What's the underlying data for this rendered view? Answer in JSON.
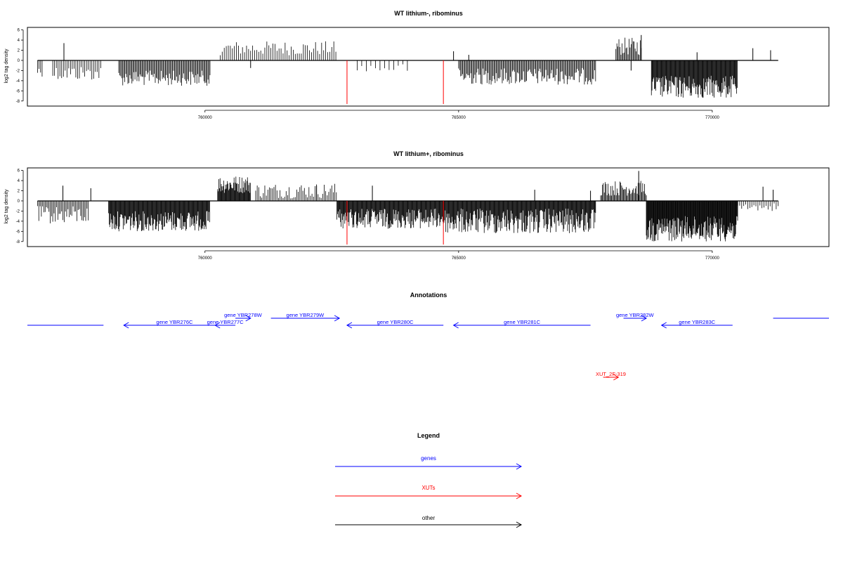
{
  "chart_data": [
    {
      "type": "bar",
      "title": "WT lithium-, ribominus",
      "ylabel": "log2 tag density",
      "xlim": [
        756500,
        772300
      ],
      "ylim": [
        -9,
        6.5
      ],
      "x_ticks": [
        760000,
        765000,
        770000
      ],
      "x_tick_labels": [
        "760000",
        "765000",
        "770000"
      ],
      "y_ticks": [
        6,
        4,
        2,
        0,
        -2,
        -4,
        -6,
        -8
      ],
      "y_tick_labels": [
        "6",
        "4",
        "2",
        "0",
        "-2",
        "-4",
        "-6",
        "-8"
      ],
      "baseline": {
        "x_start": 756700,
        "x_end": 771300,
        "y": 0
      },
      "series": [
        {
          "color": "#000000",
          "segments": [
            {
              "x0": 756700,
              "x1": 756800,
              "step": 30,
              "sign": -1,
              "min": 1.0,
              "max": 3.2
            },
            {
              "x0": 757000,
              "x1": 757950,
              "step": 35,
              "sign": -1,
              "min": 1.0,
              "max": 4.0
            },
            {
              "x0": 758300,
              "x1": 760100,
              "step": 20,
              "sign": -1,
              "min": 2.0,
              "max": 5.0
            },
            {
              "x0": 760300,
              "x1": 762600,
              "step": 40,
              "sign": 1,
              "min": 1.0,
              "max": 3.8
            },
            {
              "x0": 763000,
              "x1": 764000,
              "step": 90,
              "sign": -1,
              "min": 0.5,
              "max": 2.5
            },
            {
              "x0": 765000,
              "x1": 767700,
              "step": 20,
              "sign": -1,
              "min": 1.5,
              "max": 4.8
            },
            {
              "x0": 768100,
              "x1": 768600,
              "step": 20,
              "sign": 1,
              "min": 1.0,
              "max": 4.5
            },
            {
              "x0": 768800,
              "x1": 770500,
              "step": 12,
              "sign": -1,
              "min": 3.0,
              "max": 7.5
            }
          ]
        },
        {
          "color": "#000000",
          "spikes": [
            {
              "x": 757220,
              "y": 3.4
            },
            {
              "x": 760900,
              "y": -1.5
            },
            {
              "x": 765200,
              "y": 1.1
            },
            {
              "x": 764900,
              "y": 1.8
            },
            {
              "x": 768600,
              "y": 5.0
            },
            {
              "x": 769700,
              "y": 1.6
            },
            {
              "x": 770800,
              "y": 2.4
            },
            {
              "x": 771150,
              "y": 2.0
            },
            {
              "x": 768400,
              "y": -2.0
            }
          ]
        },
        {
          "color": "#ff0000",
          "spikes": [
            {
              "x": 762800,
              "y": -8.6
            },
            {
              "x": 764700,
              "y": -8.6
            }
          ]
        }
      ]
    },
    {
      "type": "bar",
      "title": "WT lithium+, ribominus",
      "ylabel": "log2 tag density",
      "xlim": [
        756500,
        772300
      ],
      "ylim": [
        -9,
        6.5
      ],
      "x_ticks": [
        760000,
        765000,
        770000
      ],
      "x_tick_labels": [
        "760000",
        "765000",
        "770000"
      ],
      "y_ticks": [
        6,
        4,
        2,
        0,
        -2,
        -4,
        -6,
        -8
      ],
      "y_tick_labels": [
        "6",
        "4",
        "2",
        "0",
        "-2",
        "-4",
        "-6",
        "-8"
      ],
      "baseline": {
        "x_start": 756700,
        "x_end": 771300,
        "y": 0
      },
      "series": [
        {
          "color": "#000000",
          "segments": [
            {
              "x0": 756700,
              "x1": 757700,
              "step": 25,
              "sign": -1,
              "min": 1.0,
              "max": 4.5
            },
            {
              "x0": 758100,
              "x1": 760100,
              "step": 12,
              "sign": -1,
              "min": 2.0,
              "max": 6.0
            },
            {
              "x0": 760250,
              "x1": 760900,
              "step": 12,
              "sign": 1,
              "min": 1.5,
              "max": 5.0
            },
            {
              "x0": 761000,
              "x1": 762600,
              "step": 30,
              "sign": 1,
              "min": 0.5,
              "max": 3.5
            },
            {
              "x0": 762600,
              "x1": 764700,
              "step": 12,
              "sign": -1,
              "min": 1.5,
              "max": 5.5
            },
            {
              "x0": 764700,
              "x1": 767700,
              "step": 12,
              "sign": -1,
              "min": 1.5,
              "max": 6.5
            },
            {
              "x0": 767800,
              "x1": 768700,
              "step": 18,
              "sign": 1,
              "min": 1.0,
              "max": 4.0
            },
            {
              "x0": 768700,
              "x1": 770500,
              "step": 10,
              "sign": -1,
              "min": 3.0,
              "max": 8.0
            },
            {
              "x0": 770500,
              "x1": 771300,
              "step": 40,
              "sign": -1,
              "min": 0.5,
              "max": 2.0
            }
          ]
        },
        {
          "color": "#000000",
          "spikes": [
            {
              "x": 757200,
              "y": 3.0
            },
            {
              "x": 757750,
              "y": 2.5
            },
            {
              "x": 762200,
              "y": 3.0
            },
            {
              "x": 763300,
              "y": 3.0
            },
            {
              "x": 768550,
              "y": 5.9
            },
            {
              "x": 771000,
              "y": 2.8
            },
            {
              "x": 771200,
              "y": 2.2
            },
            {
              "x": 767600,
              "y": 2.0
            },
            {
              "x": 766500,
              "y": 2.2
            }
          ]
        },
        {
          "color": "#ff0000",
          "spikes": [
            {
              "x": 762800,
              "y": -8.6
            },
            {
              "x": 764700,
              "y": -8.6
            }
          ]
        }
      ]
    }
  ],
  "annotations": {
    "title": "Annotations",
    "genes": [
      {
        "label": "",
        "x0": 756500,
        "x1": 758000,
        "strand": "-",
        "row": 1,
        "color": "#0000ff",
        "head": false
      },
      {
        "label": "gene YBR276C",
        "x0": 758400,
        "x1": 760400,
        "strand": "-",
        "row": 1,
        "color": "#0000ff",
        "head": true
      },
      {
        "label": "gene YBR277C",
        "x0": 760200,
        "x1": 760600,
        "strand": "-",
        "row": 1,
        "color": "#0000ff",
        "head": true
      },
      {
        "label": "gene YBR278W",
        "x0": 760600,
        "x1": 760900,
        "strand": "+",
        "row": 0,
        "color": "#0000ff",
        "head": true
      },
      {
        "label": "gene YBR279W",
        "x0": 761300,
        "x1": 762650,
        "strand": "+",
        "row": 0,
        "color": "#0000ff",
        "head": true
      },
      {
        "label": "gene YBR280C",
        "x0": 762800,
        "x1": 764700,
        "strand": "-",
        "row": 1,
        "color": "#0000ff",
        "head": true
      },
      {
        "label": "gene YBR281C",
        "x0": 764900,
        "x1": 767600,
        "strand": "-",
        "row": 1,
        "color": "#0000ff",
        "head": true
      },
      {
        "label": "gene YBR282W",
        "x0": 768250,
        "x1": 768700,
        "strand": "+",
        "row": 0,
        "color": "#0000ff",
        "head": true
      },
      {
        "label": "gene YBR283C",
        "x0": 769000,
        "x1": 770400,
        "strand": "-",
        "row": 1,
        "color": "#0000ff",
        "head": true
      },
      {
        "label": "",
        "x0": 771200,
        "x1": 772300,
        "strand": "+",
        "row": 0,
        "color": "#0000ff",
        "head": false
      }
    ],
    "xuts": [
      {
        "label": "XUT_2F-319",
        "x0": 767850,
        "x1": 768150,
        "strand": "+",
        "color": "#ff0000"
      }
    ]
  },
  "legend": {
    "title": "Legend",
    "items": [
      {
        "label": "genes",
        "color": "#0000ff"
      },
      {
        "label": "XUTs",
        "color": "#ff0000"
      },
      {
        "label": "other",
        "color": "#000000"
      }
    ]
  }
}
